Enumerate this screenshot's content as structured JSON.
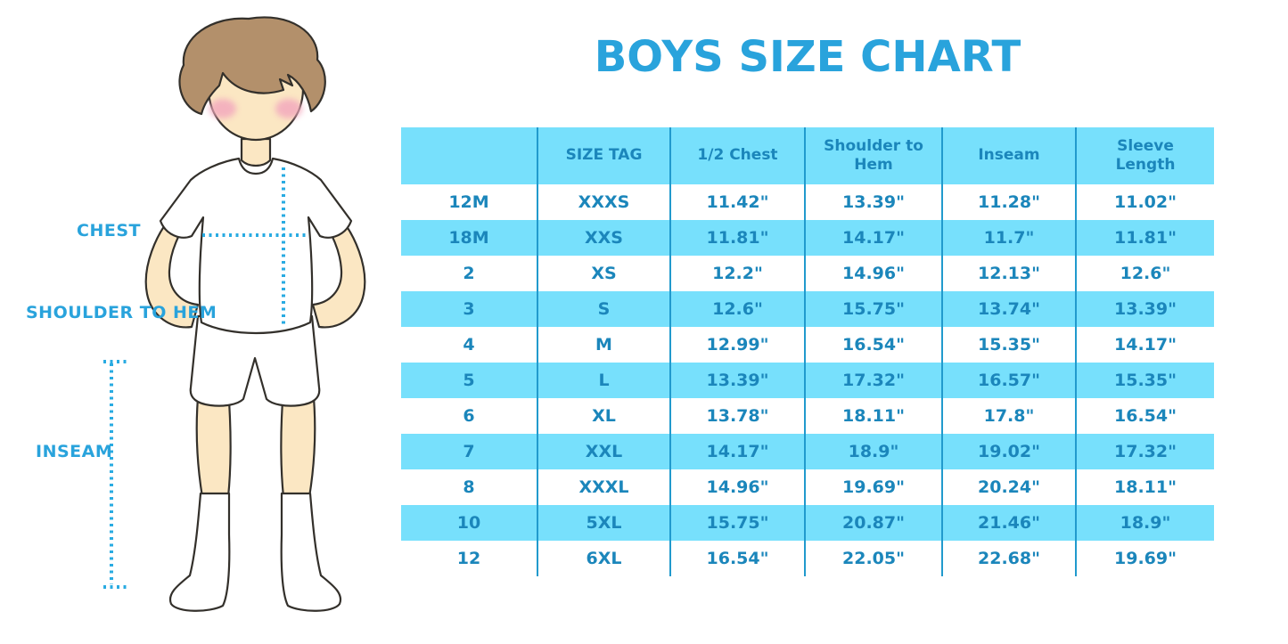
{
  "page": {
    "title": "BOYS SIZE CHART"
  },
  "illustration": {
    "figure": "boy-in-white-tshirt-shorts-and-knee-socks",
    "labels": {
      "chest": "CHEST",
      "shoulder_to_hem": "SHOULDER TO HEM",
      "inseam": "INSEAM"
    }
  },
  "colors": {
    "accent": "#29A3DC",
    "table_text": "#1B86BB",
    "row_fill": "#77E0FC",
    "separator": "#219ACD",
    "dotted": "#29ABE2",
    "skin": "#FBE7C3",
    "hair": "#B3906B",
    "cheek": "#F3A9BE",
    "outline": "#33302B"
  },
  "chart_data": {
    "type": "table",
    "title": "BOYS SIZE CHART",
    "columns": [
      "",
      "SIZE TAG",
      "1/2 Chest",
      "Shoulder to Hem",
      "Inseam",
      "Sleeve Length"
    ],
    "rows": [
      [
        "12M",
        "XXXS",
        "11.42\"",
        "13.39\"",
        "11.28\"",
        "11.02\""
      ],
      [
        "18M",
        "XXS",
        "11.81\"",
        "14.17\"",
        "11.7\"",
        "11.81\""
      ],
      [
        "2",
        "XS",
        "12.2\"",
        "14.96\"",
        "12.13\"",
        "12.6\""
      ],
      [
        "3",
        "S",
        "12.6\"",
        "15.75\"",
        "13.74\"",
        "13.39\""
      ],
      [
        "4",
        "M",
        "12.99\"",
        "16.54\"",
        "15.35\"",
        "14.17\""
      ],
      [
        "5",
        "L",
        "13.39\"",
        "17.32\"",
        "16.57\"",
        "15.35\""
      ],
      [
        "6",
        "XL",
        "13.78\"",
        "18.11\"",
        "17.8\"",
        "16.54\""
      ],
      [
        "7",
        "XXL",
        "14.17\"",
        "18.9\"",
        "19.02\"",
        "17.32\""
      ],
      [
        "8",
        "XXXL",
        "14.96\"",
        "19.69\"",
        "20.24\"",
        "18.11\""
      ],
      [
        "10",
        "5XL",
        "15.75\"",
        "20.87\"",
        "21.46\"",
        "18.9\""
      ],
      [
        "12",
        "6XL",
        "16.54\"",
        "22.05\"",
        "22.68\"",
        "19.69\""
      ]
    ],
    "layout": {
      "header_background": "#77E0FC",
      "striping": "white and light-blue alternating body rows, starting white",
      "grid": "vertical column separators only"
    }
  }
}
